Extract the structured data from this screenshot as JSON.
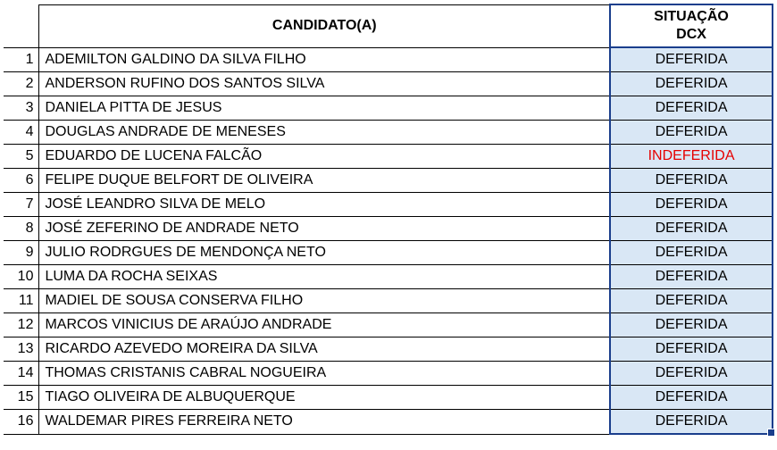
{
  "table": {
    "headers": {
      "candidate": "CANDIDATO(A)",
      "status": "SITUAÇÃO\nDCX"
    },
    "status_colors": {
      "deferred_bg": "#d9e7f5",
      "selected_border": "#1a3e8c",
      "indeferred_text": "#e60000",
      "deferred_text": "#000000"
    },
    "rows": [
      {
        "num": "1",
        "name": "ADEMILTON GALDINO DA SILVA FILHO",
        "status": "DEFERIDA",
        "status_class": "deferred"
      },
      {
        "num": "2",
        "name": "ANDERSON RUFINO DOS SANTOS SILVA",
        "status": "DEFERIDA",
        "status_class": "deferred"
      },
      {
        "num": "3",
        "name": "DANIELA PITTA DE JESUS",
        "status": "DEFERIDA",
        "status_class": "deferred"
      },
      {
        "num": "4",
        "name": "DOUGLAS ANDRADE DE MENESES",
        "status": "DEFERIDA",
        "status_class": "deferred"
      },
      {
        "num": "5",
        "name": "EDUARDO DE LUCENA FALCÃO",
        "status": "INDEFERIDA",
        "status_class": "indeferred"
      },
      {
        "num": "6",
        "name": "FELIPE DUQUE BELFORT DE OLIVEIRA",
        "status": "DEFERIDA",
        "status_class": "deferred"
      },
      {
        "num": "7",
        "name": "JOSÉ LEANDRO SILVA DE MELO",
        "status": "DEFERIDA",
        "status_class": "deferred"
      },
      {
        "num": "8",
        "name": "JOSÉ ZEFERINO DE ANDRADE NETO",
        "status": "DEFERIDA",
        "status_class": "deferred"
      },
      {
        "num": "9",
        "name": "JULIO RODRGUES DE MENDONÇA NETO",
        "status": "DEFERIDA",
        "status_class": "deferred"
      },
      {
        "num": "10",
        "name": "LUMA DA ROCHA SEIXAS",
        "status": "DEFERIDA",
        "status_class": "deferred"
      },
      {
        "num": "11",
        "name": "MADIEL DE SOUSA CONSERVA FILHO",
        "status": "DEFERIDA",
        "status_class": "deferred"
      },
      {
        "num": "12",
        "name": "MARCOS VINICIUS DE ARAÚJO ANDRADE",
        "status": "DEFERIDA",
        "status_class": "deferred"
      },
      {
        "num": "13",
        "name": "RICARDO AZEVEDO MOREIRA DA SILVA",
        "status": "DEFERIDA",
        "status_class": "deferred"
      },
      {
        "num": "14",
        "name": "THOMAS CRISTANIS CABRAL NOGUEIRA",
        "status": "DEFERIDA",
        "status_class": "deferred"
      },
      {
        "num": "15",
        "name": "TIAGO OLIVEIRA DE ALBUQUERQUE",
        "status": "DEFERIDA",
        "status_class": "deferred"
      },
      {
        "num": "16",
        "name": "WALDEMAR PIRES FERREIRA NETO",
        "status": "DEFERIDA",
        "status_class": "deferred"
      }
    ]
  }
}
